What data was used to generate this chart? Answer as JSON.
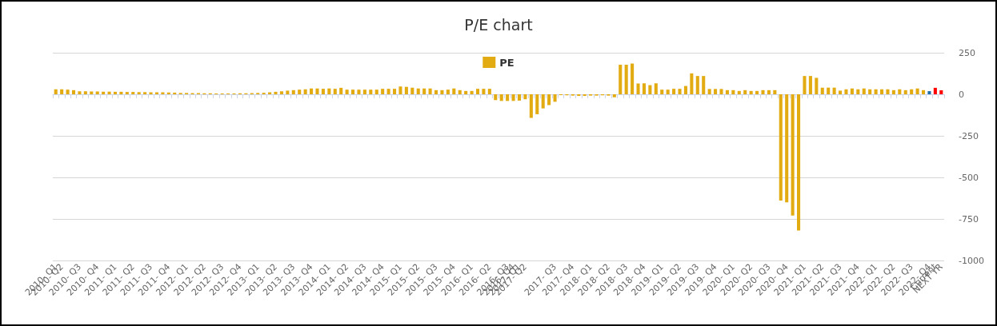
{
  "chart_data": {
    "type": "bar",
    "title": "P/E chart",
    "categories": [
      "2010- Q1",
      "2010- Q2",
      null,
      null,
      "2010- Q3",
      null,
      null,
      "2010- Q4",
      null,
      null,
      "2011- Q1",
      null,
      null,
      "2011- Q2",
      null,
      null,
      "2011- Q3",
      null,
      null,
      "2011- Q4",
      null,
      null,
      "2012- Q1",
      null,
      null,
      "2012- Q2",
      null,
      null,
      "2012- Q3",
      null,
      null,
      "2012- Q4",
      null,
      null,
      "2013- Q1",
      null,
      null,
      "2013- Q2",
      null,
      null,
      "2013- Q3",
      null,
      null,
      "2013- Q4",
      null,
      null,
      "2014- Q1",
      null,
      null,
      "2014- Q2",
      null,
      null,
      "2014- Q3",
      null,
      null,
      "2014- Q4",
      null,
      null,
      "2015- Q1",
      null,
      null,
      "2015- Q2",
      null,
      null,
      "2015- Q3",
      null,
      null,
      "2015- Q4",
      null,
      null,
      "2016- Q1",
      null,
      null,
      "2016- Q2",
      null,
      null,
      "2016- Q3",
      "2016- Q4",
      "2017- Q1",
      "2017- Q2",
      null,
      null,
      null,
      null,
      "2017- Q3",
      null,
      null,
      "2017- Q4",
      null,
      null,
      "2018- Q1",
      null,
      null,
      "2018- Q2",
      null,
      null,
      "2018- Q3",
      null,
      null,
      "2018- Q4",
      null,
      null,
      "2019- Q1",
      null,
      null,
      "2019- Q2",
      null,
      null,
      "2019- Q3",
      null,
      null,
      "2019- Q4",
      null,
      null,
      "2020- Q1",
      null,
      null,
      "2020- Q2",
      null,
      null,
      "2020- Q3",
      null,
      null,
      "2020- Q4",
      null,
      null,
      "2021- Q1",
      null,
      null,
      "2021- Q2",
      null,
      null,
      "2021- Q3",
      null,
      null,
      "2021- Q4",
      null,
      null,
      "2022- Q1",
      null,
      null,
      "2022- Q2",
      null,
      null,
      "2022- Q3",
      null,
      null,
      "2022- Q4",
      "Current",
      "NEXT YR"
    ],
    "series": [
      {
        "name": "PE",
        "color": "#e3ab12",
        "values": [
          30,
          30,
          28,
          25,
          18,
          18,
          17,
          17,
          16,
          16,
          15,
          15,
          14,
          14,
          13,
          13,
          12,
          12,
          12,
          11,
          10,
          8,
          8,
          7,
          7,
          6,
          6,
          5,
          5,
          5,
          5,
          6,
          6,
          7,
          8,
          9,
          12,
          15,
          18,
          22,
          25,
          28,
          30,
          35,
          35,
          33,
          35,
          33,
          39,
          28,
          28,
          28,
          28,
          28,
          28,
          33,
          33,
          33,
          47,
          45,
          40,
          35,
          35,
          35,
          25,
          25,
          28,
          35,
          25,
          20,
          20,
          33,
          33,
          33,
          -35,
          -40,
          -40,
          -40,
          -38,
          -30,
          -142,
          -120,
          -85,
          -65,
          -45,
          -5,
          -6,
          -8,
          -10,
          -10,
          -8,
          -8,
          -6,
          -8,
          -18,
          178,
          178,
          185,
          65,
          66,
          55,
          66,
          28,
          28,
          33,
          33,
          50,
          126,
          110,
          110,
          32,
          32,
          32,
          25,
          25,
          20,
          25,
          20,
          20,
          25,
          25,
          25,
          -640,
          -650,
          -730,
          -820,
          110,
          110,
          99,
          40,
          40,
          40,
          22,
          30,
          35,
          30,
          35,
          30,
          30,
          30,
          30,
          25,
          30,
          25,
          30,
          35,
          25,
          19,
          39,
          24
        ],
        "colors": [
          "#e3ab12",
          "#e3ab12",
          "#e3ab12",
          "#e3ab12",
          "#e3ab12",
          "#e3ab12",
          "#e3ab12",
          "#e3ab12",
          "#e3ab12",
          "#e3ab12",
          "#e3ab12",
          "#e3ab12",
          "#e3ab12",
          "#e3ab12",
          "#e3ab12",
          "#e3ab12",
          "#e3ab12",
          "#e3ab12",
          "#e3ab12",
          "#e3ab12",
          "#e3ab12",
          "#e3ab12",
          "#e3ab12",
          "#e3ab12",
          "#e3ab12",
          "#e3ab12",
          "#e3ab12",
          "#e3ab12",
          "#e3ab12",
          "#e3ab12",
          "#e3ab12",
          "#e3ab12",
          "#e3ab12",
          "#e3ab12",
          "#e3ab12",
          "#e3ab12",
          "#e3ab12",
          "#e3ab12",
          "#e3ab12",
          "#e3ab12",
          "#e3ab12",
          "#e3ab12",
          "#e3ab12",
          "#e3ab12",
          "#e3ab12",
          "#e3ab12",
          "#e3ab12",
          "#e3ab12",
          "#e3ab12",
          "#e3ab12",
          "#e3ab12",
          "#e3ab12",
          "#e3ab12",
          "#e3ab12",
          "#e3ab12",
          "#e3ab12",
          "#e3ab12",
          "#e3ab12",
          "#e3ab12",
          "#e3ab12",
          "#e3ab12",
          "#e3ab12",
          "#e3ab12",
          "#e3ab12",
          "#e3ab12",
          "#e3ab12",
          "#e3ab12",
          "#e3ab12",
          "#e3ab12",
          "#e3ab12",
          "#e3ab12",
          "#e3ab12",
          "#e3ab12",
          "#e3ab12",
          "#e3ab12",
          "#e3ab12",
          "#e3ab12",
          "#e3ab12",
          "#e3ab12",
          "#e3ab12",
          "#e3ab12",
          "#e3ab12",
          "#e3ab12",
          "#e3ab12",
          "#e3ab12",
          "#e3ab12",
          "#e3ab12",
          "#e3ab12",
          "#e3ab12",
          "#e3ab12",
          "#e3ab12",
          "#e3ab12",
          "#e3ab12",
          "#e3ab12",
          "#e3ab12",
          "#e3ab12",
          "#e3ab12",
          "#e3ab12",
          "#e3ab12",
          "#e3ab12",
          "#e3ab12",
          "#e3ab12",
          "#e3ab12",
          "#e3ab12",
          "#e3ab12",
          "#e3ab12",
          "#e3ab12",
          "#e3ab12",
          "#e3ab12",
          "#e3ab12",
          "#e3ab12",
          "#e3ab12",
          "#e3ab12",
          "#e3ab12",
          "#e3ab12",
          "#e3ab12",
          "#e3ab12",
          "#e3ab12",
          "#e3ab12",
          "#e3ab12",
          "#e3ab12",
          "#e3ab12",
          "#e3ab12",
          "#e3ab12",
          "#e3ab12",
          "#e3ab12",
          "#e3ab12",
          "#e3ab12",
          "#e3ab12",
          "#e3ab12",
          "#e3ab12",
          "#e3ab12",
          "#e3ab12",
          "#e3ab12",
          "#e3ab12",
          "#e3ab12",
          "#e3ab12",
          "#e3ab12",
          "#e3ab12",
          "#e3ab12",
          "#e3ab12",
          "#e3ab12",
          "#e3ab12",
          "#e3ab12",
          "#e3ab12",
          "#e3ab12",
          "#e3ab12",
          "#1f6fa8",
          "#ff0000",
          "#ff0000"
        ]
      }
    ],
    "ylim": [
      -1000,
      250
    ],
    "yticks": [
      -1000,
      -750,
      -500,
      -250,
      0,
      250
    ],
    "grid": "y",
    "legend": "top"
  }
}
